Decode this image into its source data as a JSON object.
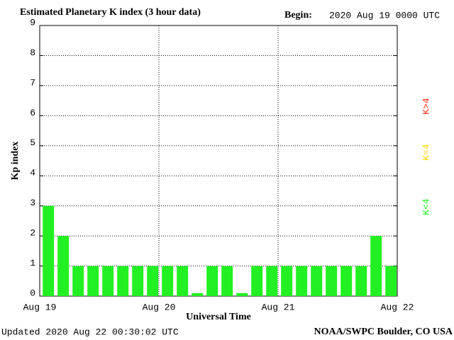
{
  "chart_data": {
    "type": "bar",
    "title": "Estimated Planetary K index (3 hour data)",
    "begin_label": "Begin:",
    "begin_value": "2020 Aug 19 0000 UTC",
    "y_label": "Kp index",
    "x_label": "Universal Time",
    "updated": "Updated 2020 Aug 22 00:30:02 UTC",
    "source": "NOAA/SWPC Boulder, CO USA",
    "x": [
      0,
      3,
      6,
      9,
      12,
      15,
      18,
      21,
      24,
      27,
      30,
      33,
      36,
      39,
      42,
      45,
      48,
      51,
      54,
      57,
      60,
      63,
      66,
      69
    ],
    "values": [
      3,
      2,
      1,
      1,
      1,
      1,
      1,
      1,
      1,
      1,
      0.1,
      1,
      1,
      0.1,
      1,
      1,
      1,
      1,
      1,
      1,
      1,
      1,
      2,
      1
    ],
    "color": "#22f022",
    "xlim": [
      0,
      72
    ],
    "xticks": [
      {
        "value": 0,
        "label": "Aug 19"
      },
      {
        "value": 24,
        "label": "Aug 20"
      },
      {
        "value": 48,
        "label": "Aug 21"
      },
      {
        "value": 72,
        "label": "Aug 22"
      }
    ],
    "ylim": [
      0,
      9
    ],
    "yticks": [
      0,
      1,
      2,
      3,
      4,
      5,
      6,
      7,
      8,
      9
    ],
    "grid": true,
    "legend": [
      {
        "name": "K<4",
        "color": "#22f022"
      },
      {
        "name": "K=4",
        "color": "#ffd700"
      },
      {
        "name": "K>4",
        "color": "#ff3010"
      }
    ]
  }
}
